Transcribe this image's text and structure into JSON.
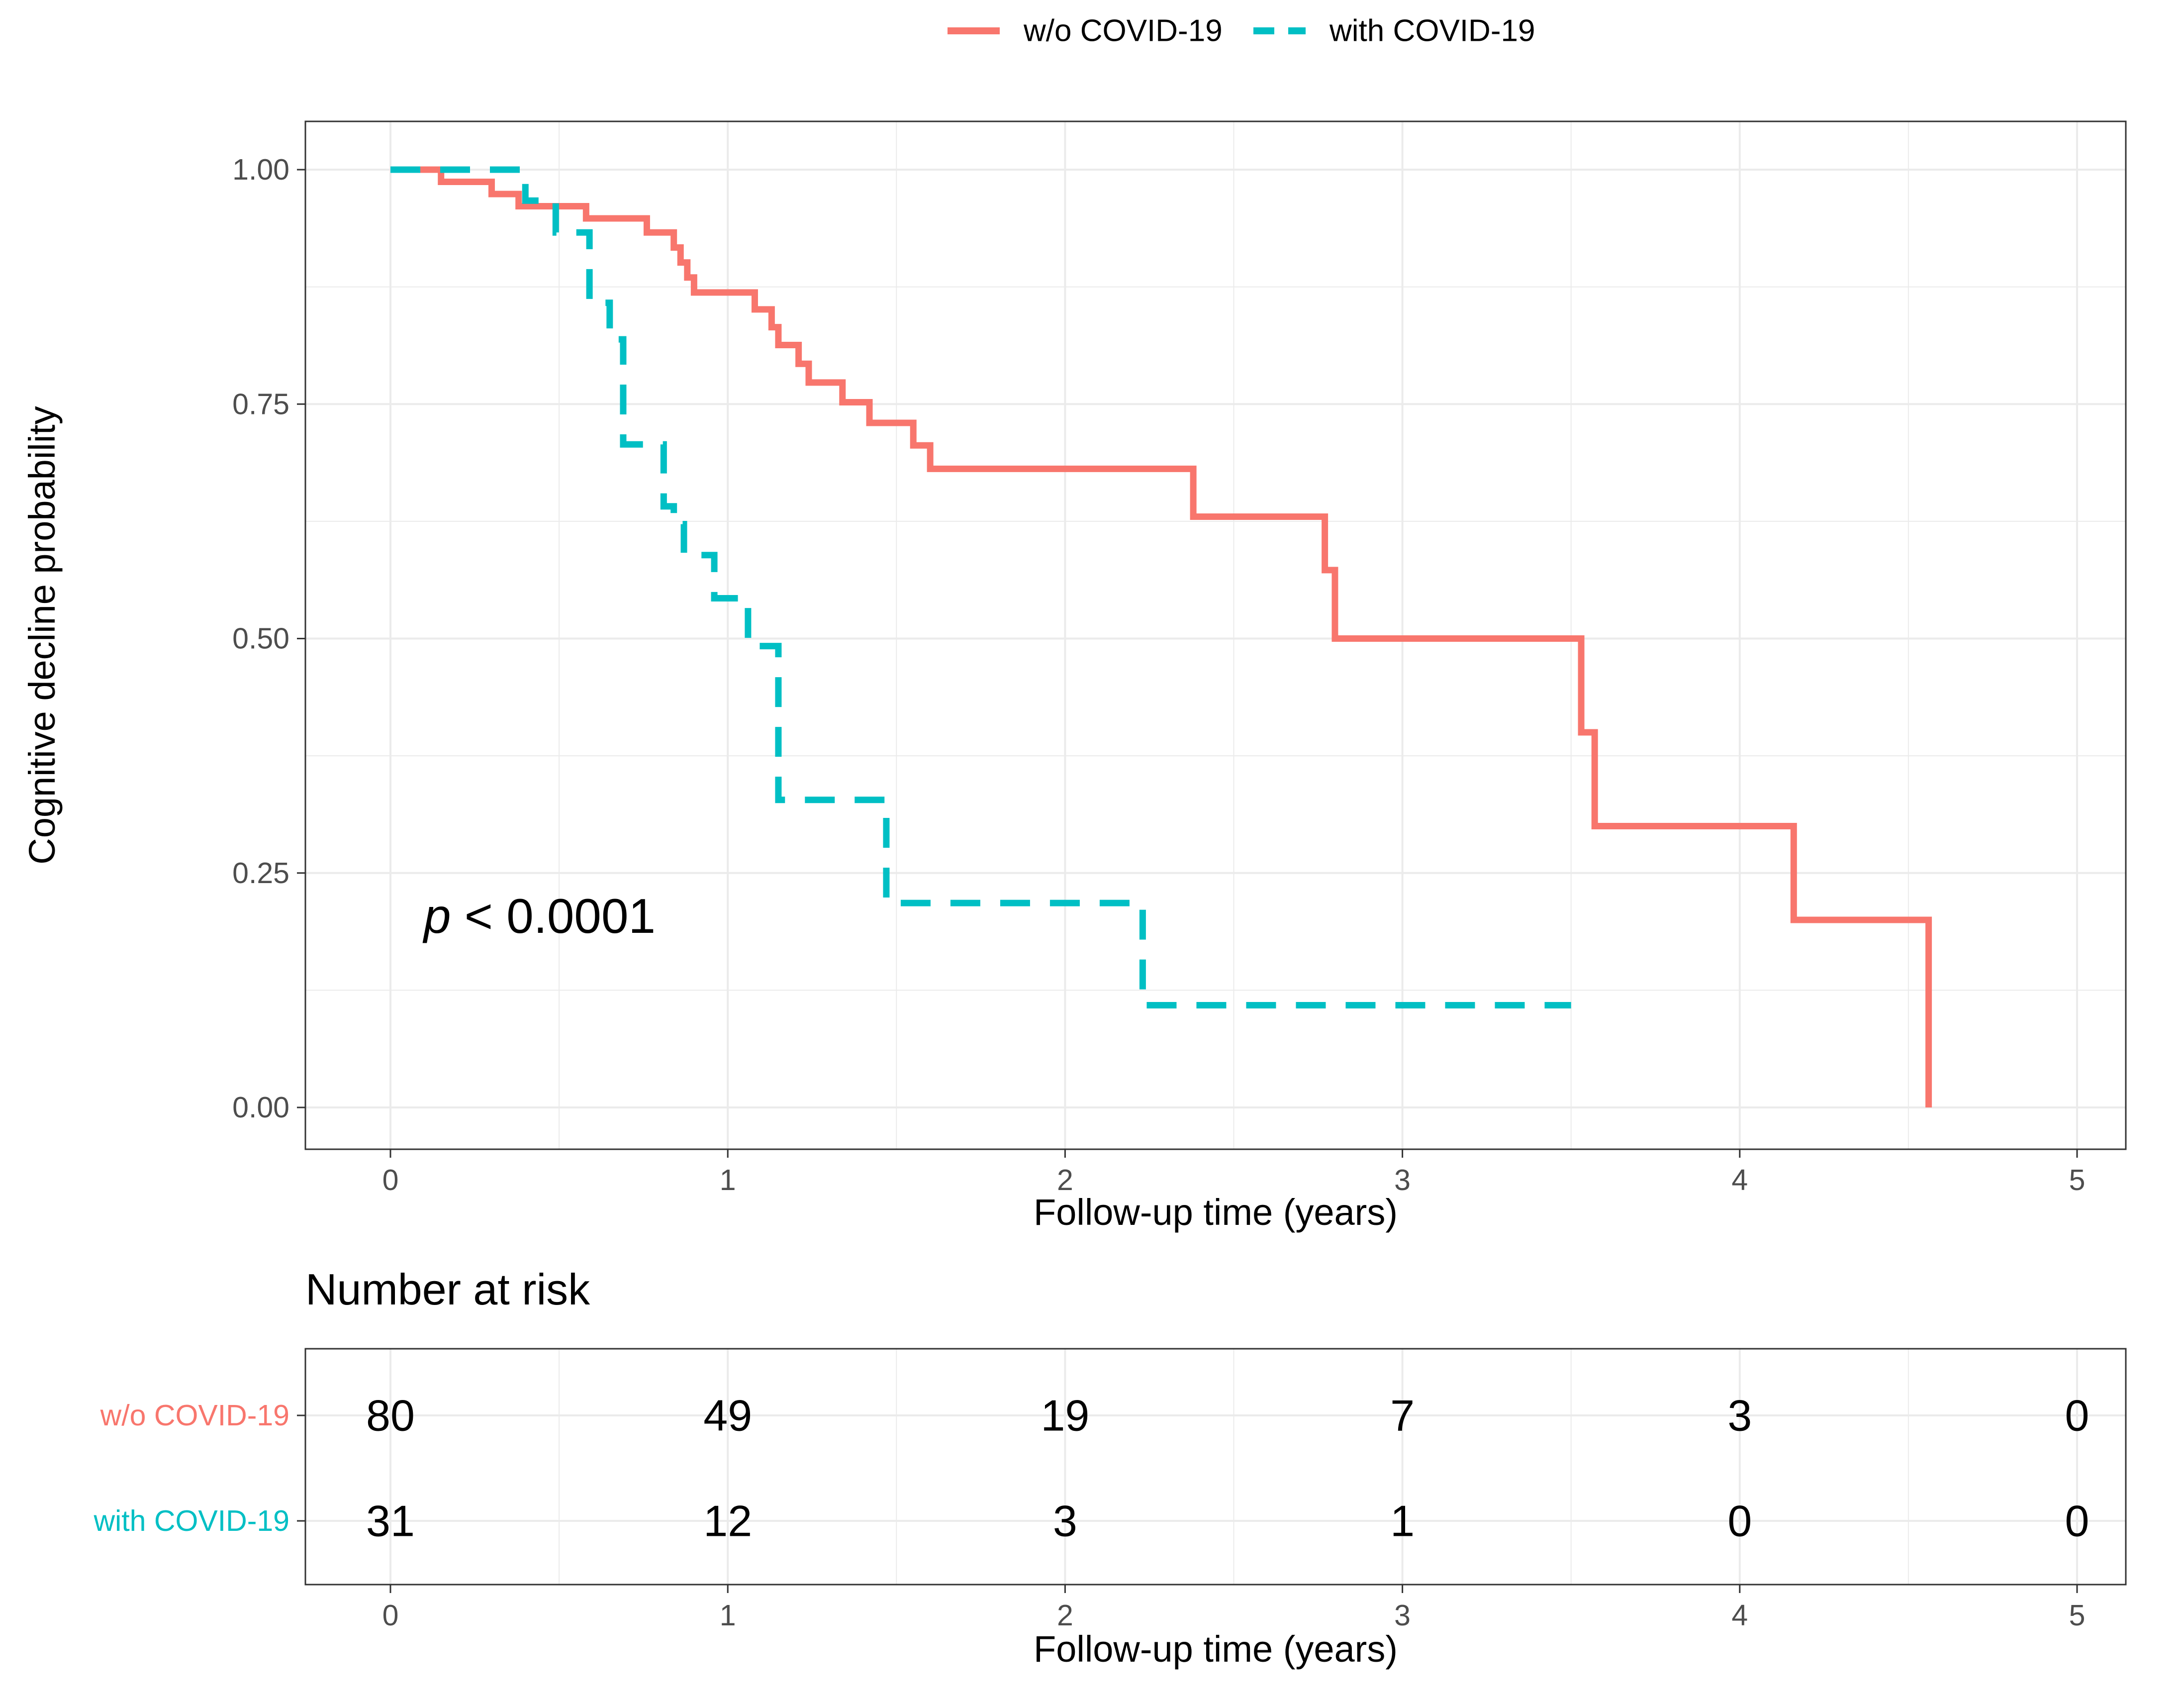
{
  "colors": {
    "without": "#F8766D",
    "with": "#00BFC4",
    "axis_text": "#4D4D4D",
    "grid": "#EBEBEB",
    "panel_border": "#333333",
    "text": "#000000"
  },
  "chart_data": {
    "type": "line",
    "subtype": "kaplan-meier step",
    "xlabel": "Follow-up time (years)",
    "ylabel": "Cognitive decline probability",
    "xlim": [
      0,
      5
    ],
    "ylim": [
      0,
      1
    ],
    "x_ticks": [
      0,
      1,
      2,
      3,
      4,
      5
    ],
    "x_tick_labels": [
      "0",
      "1",
      "2",
      "3",
      "4",
      "5"
    ],
    "y_ticks": [
      0,
      0.25,
      0.5,
      0.75,
      1.0
    ],
    "y_tick_labels": [
      "0.00",
      "0.25",
      "0.50",
      "0.75",
      "1.00"
    ],
    "grid": true,
    "legend_position": "top",
    "annotation": {
      "p_symbol": "p",
      "p_text": " < 0.0001"
    },
    "series": [
      {
        "name": "w/o COVID-19",
        "key": "without",
        "style": "solid",
        "x": [
          0,
          0.15,
          0.3,
          0.38,
          0.58,
          0.76,
          0.84,
          0.86,
          0.88,
          0.9,
          0.96,
          1.08,
          1.13,
          1.15,
          1.21,
          1.24,
          1.34,
          1.42,
          1.55,
          1.6,
          2.38,
          2.77,
          2.8,
          3.53,
          3.57,
          4.16,
          4.56
        ],
        "y": [
          1.0,
          0.987,
          0.974,
          0.961,
          0.948,
          0.933,
          0.917,
          0.901,
          0.885,
          0.869,
          0.869,
          0.851,
          0.832,
          0.813,
          0.793,
          0.773,
          0.752,
          0.73,
          0.706,
          0.681,
          0.63,
          0.573,
          0.5,
          0.4,
          0.3,
          0.2,
          0.0
        ]
      },
      {
        "name": "with COVID-19",
        "key": "with",
        "style": "dashed",
        "x": [
          0,
          0.4,
          0.49,
          0.59,
          0.65,
          0.69,
          0.81,
          0.84,
          0.87,
          0.96,
          1.06,
          1.15,
          1.47,
          2.23
        ],
        "y": [
          1.0,
          0.967,
          0.933,
          0.858,
          0.819,
          0.707,
          0.641,
          0.622,
          0.589,
          0.543,
          0.492,
          0.328,
          0.218,
          0.109
        ],
        "end_x": 3.5
      }
    ],
    "risk_table": {
      "title": "Number at risk",
      "xlabel": "Follow-up time (years)",
      "times": [
        0,
        1,
        2,
        3,
        4,
        5
      ],
      "time_labels": [
        "0",
        "1",
        "2",
        "3",
        "4",
        "5"
      ],
      "rows": [
        {
          "name": "w/o COVID-19",
          "key": "without",
          "values": [
            "80",
            "49",
            "19",
            "7",
            "3",
            "0"
          ]
        },
        {
          "name": "with COVID-19",
          "key": "with",
          "values": [
            "31",
            "12",
            "3",
            "1",
            "0",
            "0"
          ]
        }
      ]
    }
  }
}
